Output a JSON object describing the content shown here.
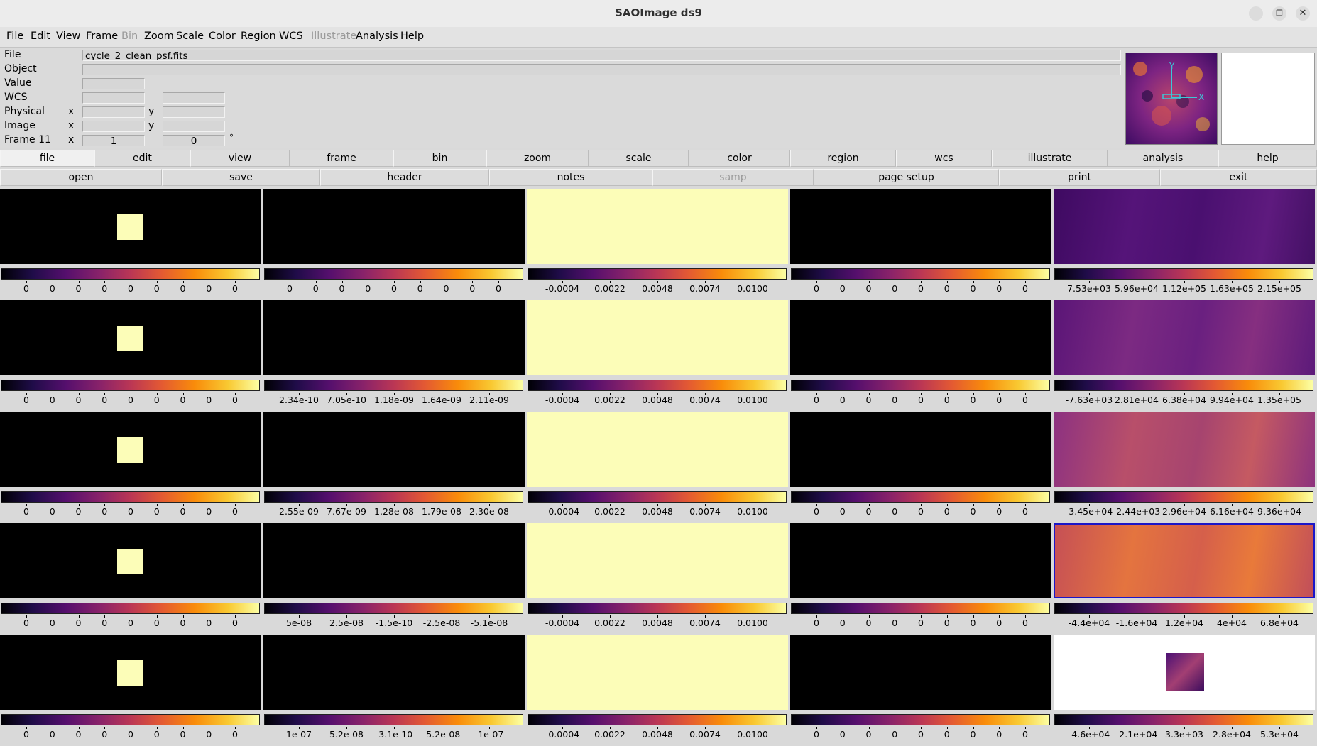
{
  "window": {
    "title": "SAOImage ds9"
  },
  "menu": [
    "File",
    "Edit",
    "View",
    "Frame",
    "Bin",
    "Zoom",
    "Scale",
    "Color",
    "Region",
    "WCS",
    "Illustrate",
    "Analysis",
    "Help"
  ],
  "menu_disabled": [
    "Bin",
    "Illustrate"
  ],
  "info": {
    "file_label": "File",
    "file_value": "cycle_2_clean_psf.fits",
    "object_label": "Object",
    "value_label": "Value",
    "wcs_label": "WCS",
    "physical_label": "Physical",
    "image_label": "Image",
    "frame_label": "Frame 11",
    "x": "x",
    "y": "y",
    "frame_x": "1",
    "frame_y": "0",
    "degree": "°"
  },
  "panner": {
    "axis_x": "X",
    "axis_y": "Y"
  },
  "buttonbar1": [
    "file",
    "edit",
    "view",
    "frame",
    "bin",
    "zoom",
    "scale",
    "color",
    "region",
    "wcs",
    "illustrate",
    "analysis",
    "help"
  ],
  "buttonbar1_active": "file",
  "buttonbar2": [
    "open",
    "save",
    "header",
    "notes",
    "samp",
    "page setup",
    "print",
    "exit"
  ],
  "buttonbar2_disabled": [
    "samp"
  ],
  "colormap": "inferno",
  "frames": [
    [
      {
        "content": "square",
        "labels": [
          "0",
          "0",
          "0",
          "0",
          "0",
          "0",
          "0",
          "0",
          "0"
        ]
      },
      {
        "content": "black",
        "labels": [
          "0",
          "0",
          "0",
          "0",
          "0",
          "0",
          "0",
          "0",
          "0"
        ]
      },
      {
        "content": "yellow",
        "labels": [
          "-0.0004",
          "0.0022",
          "0.0048",
          "0.0074",
          "0.0100"
        ]
      },
      {
        "content": "black",
        "labels": [
          "0",
          "0",
          "0",
          "0",
          "0",
          "0",
          "0",
          "0",
          "0"
        ]
      },
      {
        "content": "inferno1",
        "labels": [
          "7.53e+03",
          "5.96e+04",
          "1.12e+05",
          "1.63e+05",
          "2.15e+05"
        ]
      }
    ],
    [
      {
        "content": "square",
        "labels": [
          "0",
          "0",
          "0",
          "0",
          "0",
          "0",
          "0",
          "0",
          "0"
        ]
      },
      {
        "content": "black",
        "labels": [
          "2.34e-10",
          "7.05e-10",
          "1.18e-09",
          "1.64e-09",
          "2.11e-09"
        ]
      },
      {
        "content": "yellow",
        "labels": [
          "-0.0004",
          "0.0022",
          "0.0048",
          "0.0074",
          "0.0100"
        ]
      },
      {
        "content": "black",
        "labels": [
          "0",
          "0",
          "0",
          "0",
          "0",
          "0",
          "0",
          "0",
          "0"
        ]
      },
      {
        "content": "inferno2",
        "labels": [
          "-7.63e+03",
          "2.81e+04",
          "6.38e+04",
          "9.94e+04",
          "1.35e+05"
        ]
      }
    ],
    [
      {
        "content": "square",
        "labels": [
          "0",
          "0",
          "0",
          "0",
          "0",
          "0",
          "0",
          "0",
          "0"
        ]
      },
      {
        "content": "black",
        "labels": [
          "2.55e-09",
          "7.67e-09",
          "1.28e-08",
          "1.79e-08",
          "2.30e-08"
        ]
      },
      {
        "content": "yellow",
        "labels": [
          "-0.0004",
          "0.0022",
          "0.0048",
          "0.0074",
          "0.0100"
        ]
      },
      {
        "content": "black",
        "labels": [
          "0",
          "0",
          "0",
          "0",
          "0",
          "0",
          "0",
          "0",
          "0"
        ]
      },
      {
        "content": "inferno3",
        "labels": [
          "-3.45e+04",
          "-2.44e+03",
          "2.96e+04",
          "6.16e+04",
          "9.36e+04"
        ]
      }
    ],
    [
      {
        "content": "square",
        "labels": [
          "0",
          "0",
          "0",
          "0",
          "0",
          "0",
          "0",
          "0",
          "0"
        ]
      },
      {
        "content": "black",
        "labels": [
          "5e-08",
          "2.5e-08",
          "-1.5e-10",
          "-2.5e-08",
          "-5.1e-08"
        ]
      },
      {
        "content": "yellow",
        "labels": [
          "-0.0004",
          "0.0022",
          "0.0048",
          "0.0074",
          "0.0100"
        ]
      },
      {
        "content": "black",
        "labels": [
          "0",
          "0",
          "0",
          "0",
          "0",
          "0",
          "0",
          "0",
          "0"
        ]
      },
      {
        "content": "inferno4",
        "selected": true,
        "labels": [
          "-4.4e+04",
          "-1.6e+04",
          "1.2e+04",
          "4e+04",
          "6.8e+04"
        ]
      }
    ],
    [
      {
        "content": "square",
        "labels": [
          "0",
          "0",
          "0",
          "0",
          "0",
          "0",
          "0",
          "0",
          "0"
        ]
      },
      {
        "content": "black",
        "labels": [
          "1e-07",
          "5.2e-08",
          "-3.1e-10",
          "-5.2e-08",
          "-1e-07"
        ]
      },
      {
        "content": "yellow",
        "labels": [
          "-0.0004",
          "0.0022",
          "0.0048",
          "0.0074",
          "0.0100"
        ]
      },
      {
        "content": "black",
        "labels": [
          "0",
          "0",
          "0",
          "0",
          "0",
          "0",
          "0",
          "0",
          "0"
        ]
      },
      {
        "content": "thumb",
        "labels": [
          "-4.6e+04",
          "-2.1e+04",
          "3.3e+03",
          "2.8e+04",
          "5.3e+04"
        ]
      }
    ]
  ]
}
